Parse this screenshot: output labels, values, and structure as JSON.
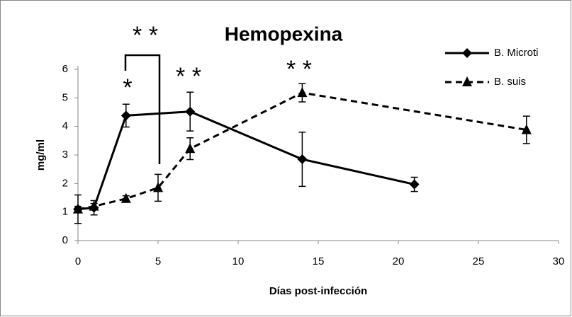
{
  "chart_data": {
    "type": "line",
    "title": "Hemopexina",
    "x_label": "Días post-infección",
    "y_label": "mg/ml",
    "xlim": [
      0,
      30
    ],
    "xticks": [
      0,
      5,
      10,
      15,
      20,
      25,
      30
    ],
    "ylim": [
      0,
      6
    ],
    "yticks": [
      0,
      1,
      2,
      3,
      4,
      5,
      6
    ],
    "legend": "top-right",
    "series": [
      {
        "name": "B. Microti",
        "color": "#000000",
        "dash": "solid",
        "marker": "diamond",
        "x": [
          0,
          1,
          3,
          7,
          14,
          21
        ],
        "values": [
          1.1,
          1.15,
          4.38,
          4.52,
          2.85,
          1.97
        ],
        "errors": [
          0.5,
          0.25,
          0.4,
          0.68,
          0.95,
          0.25
        ]
      },
      {
        "name": "B. suis",
        "color": "#000000",
        "dash": "dashed",
        "marker": "triangle",
        "x": [
          0,
          1,
          3,
          5,
          7,
          14,
          28
        ],
        "values": [
          1.1,
          1.2,
          1.47,
          1.85,
          3.22,
          5.18,
          3.88
        ],
        "errors": [
          0.1,
          0.1,
          0.1,
          0.47,
          0.38,
          0.32,
          0.48
        ]
      }
    ],
    "annotations": [
      "* *",
      "*",
      "* *",
      "* *"
    ]
  }
}
